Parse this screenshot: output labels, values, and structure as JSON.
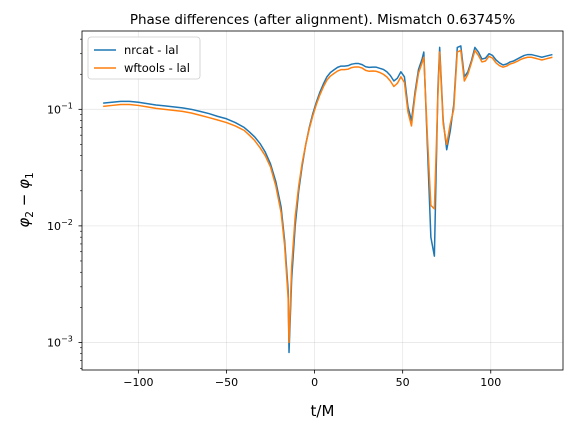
{
  "chart_data": {
    "type": "line",
    "title": "Phase differences (after alignment). Mismatch 0.63745%",
    "xlabel": "t/M",
    "ylabel_main": "φ",
    "ylabel_sub2": "2",
    "ylabel_minus": " − ",
    "ylabel_sub1": "1",
    "xlim": [
      -132,
      141
    ],
    "ylim": [
      0.00058,
      0.47
    ],
    "yscale": "log",
    "grid": true,
    "legend_position": "top-left",
    "x_ticks": [
      {
        "value": -100,
        "label": "−100"
      },
      {
        "value": -50,
        "label": "−50"
      },
      {
        "value": 0,
        "label": "0"
      },
      {
        "value": 50,
        "label": "50"
      },
      {
        "value": 100,
        "label": "100"
      }
    ],
    "y_ticks": [
      {
        "value": 0.001,
        "base": "10",
        "exp": "−3"
      },
      {
        "value": 0.01,
        "base": "10",
        "exp": "−2"
      },
      {
        "value": 0.1,
        "base": "10",
        "exp": "−1"
      }
    ],
    "series": [
      {
        "name": "nrcat - lal",
        "color": "#1f77b4",
        "x": [
          -120,
          -115,
          -110,
          -105,
          -100,
          -95,
          -90,
          -85,
          -80,
          -75,
          -70,
          -65,
          -60,
          -55,
          -50,
          -45,
          -40,
          -37,
          -34,
          -31,
          -28,
          -25,
          -22,
          -19,
          -17,
          -15,
          -14.5,
          -13,
          -11,
          -9,
          -7,
          -5,
          -3,
          -1,
          1,
          3,
          5,
          7,
          9,
          11,
          13,
          15,
          17,
          19,
          21,
          23,
          25,
          27,
          29,
          31,
          33,
          35,
          37,
          39,
          41,
          43,
          45,
          47,
          49,
          51,
          53,
          55,
          57,
          59,
          61,
          62,
          64,
          66,
          68,
          70,
          71,
          73,
          75,
          77,
          79,
          81,
          83,
          85,
          87,
          89,
          91,
          93,
          95,
          97,
          99,
          101,
          103,
          105,
          107,
          109,
          111,
          113,
          115,
          117,
          119,
          121,
          123,
          125,
          127,
          129,
          131,
          133,
          135
        ],
        "y": [
          0.113,
          0.115,
          0.117,
          0.117,
          0.115,
          0.112,
          0.109,
          0.107,
          0.105,
          0.103,
          0.1,
          0.096,
          0.092,
          0.087,
          0.083,
          0.077,
          0.07,
          0.064,
          0.058,
          0.051,
          0.043,
          0.034,
          0.024,
          0.0145,
          0.0075,
          0.0028,
          0.00082,
          0.0035,
          0.01,
          0.02,
          0.033,
          0.05,
          0.07,
          0.092,
          0.115,
          0.14,
          0.165,
          0.19,
          0.207,
          0.218,
          0.229,
          0.235,
          0.235,
          0.237,
          0.244,
          0.247,
          0.247,
          0.242,
          0.232,
          0.229,
          0.23,
          0.23,
          0.225,
          0.22,
          0.21,
          0.195,
          0.175,
          0.185,
          0.21,
          0.19,
          0.105,
          0.08,
          0.14,
          0.22,
          0.27,
          0.31,
          0.05,
          0.008,
          0.0055,
          0.15,
          0.34,
          0.08,
          0.045,
          0.065,
          0.11,
          0.34,
          0.35,
          0.19,
          0.21,
          0.26,
          0.34,
          0.31,
          0.27,
          0.275,
          0.3,
          0.29,
          0.265,
          0.25,
          0.24,
          0.245,
          0.255,
          0.26,
          0.27,
          0.28,
          0.29,
          0.295,
          0.295,
          0.29,
          0.285,
          0.28,
          0.285,
          0.29,
          0.295
        ],
        "x_note": ""
      },
      {
        "name": "wftools - lal",
        "color": "#ff7f0e",
        "x": [
          -120,
          -115,
          -110,
          -105,
          -100,
          -95,
          -90,
          -85,
          -80,
          -75,
          -70,
          -65,
          -60,
          -55,
          -50,
          -45,
          -40,
          -37,
          -34,
          -31,
          -28,
          -25,
          -22,
          -19,
          -17,
          -15,
          -14.5,
          -13,
          -11,
          -9,
          -7,
          -5,
          -3,
          -1,
          1,
          3,
          5,
          7,
          9,
          11,
          13,
          15,
          17,
          19,
          21,
          23,
          25,
          27,
          29,
          31,
          33,
          35,
          37,
          39,
          41,
          43,
          45,
          47,
          49,
          51,
          53,
          55,
          57,
          59,
          61,
          62,
          64,
          66,
          68,
          70,
          71,
          73,
          75,
          77,
          79,
          81,
          83,
          85,
          87,
          89,
          91,
          93,
          95,
          97,
          99,
          101,
          103,
          105,
          107,
          109,
          111,
          113,
          115,
          117,
          119,
          121,
          123,
          125,
          127,
          129,
          131,
          133,
          135
        ],
        "y": [
          0.106,
          0.108,
          0.11,
          0.11,
          0.108,
          0.105,
          0.102,
          0.1,
          0.098,
          0.096,
          0.093,
          0.089,
          0.085,
          0.081,
          0.077,
          0.072,
          0.066,
          0.06,
          0.054,
          0.047,
          0.04,
          0.032,
          0.022,
          0.013,
          0.0068,
          0.0024,
          0.001,
          0.0045,
          0.012,
          0.022,
          0.035,
          0.05,
          0.068,
          0.088,
          0.11,
          0.133,
          0.156,
          0.178,
          0.193,
          0.203,
          0.213,
          0.219,
          0.219,
          0.221,
          0.228,
          0.231,
          0.231,
          0.226,
          0.216,
          0.212,
          0.213,
          0.212,
          0.207,
          0.2,
          0.19,
          0.175,
          0.157,
          0.167,
          0.19,
          0.17,
          0.095,
          0.072,
          0.13,
          0.205,
          0.25,
          0.28,
          0.06,
          0.015,
          0.014,
          0.13,
          0.31,
          0.075,
          0.05,
          0.075,
          0.1,
          0.31,
          0.32,
          0.175,
          0.2,
          0.25,
          0.32,
          0.29,
          0.255,
          0.26,
          0.285,
          0.275,
          0.25,
          0.237,
          0.23,
          0.235,
          0.245,
          0.25,
          0.258,
          0.268,
          0.275,
          0.28,
          0.28,
          0.275,
          0.27,
          0.265,
          0.27,
          0.275,
          0.28
        ]
      }
    ]
  }
}
